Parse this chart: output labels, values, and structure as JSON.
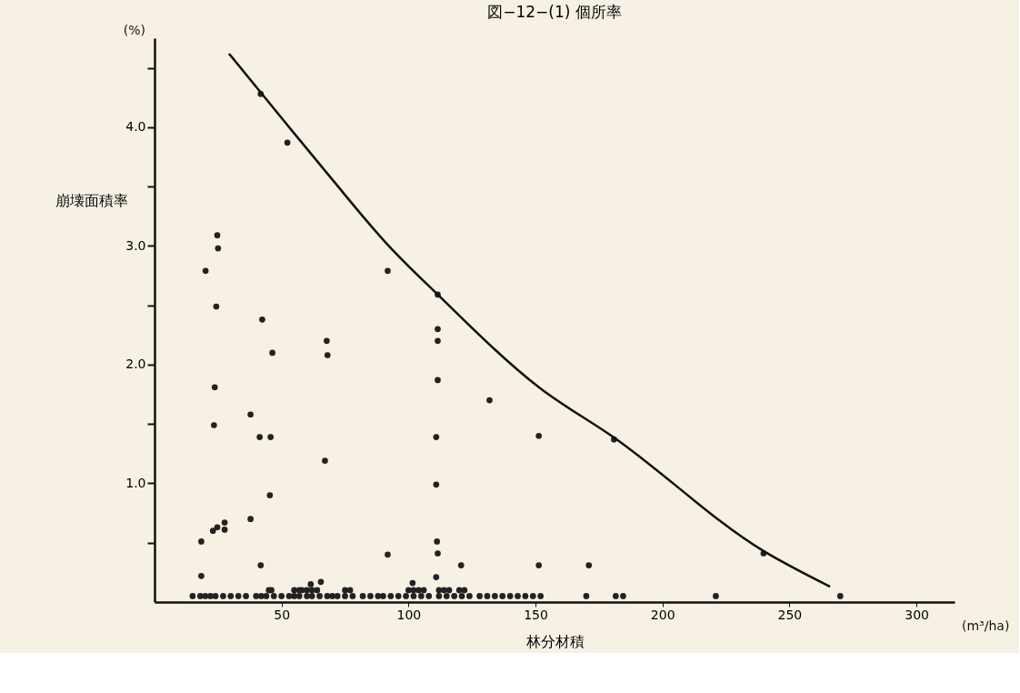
{
  "chart_data": {
    "type": "scatter",
    "title": "図−12−(1) 個所率",
    "xlabel": "林分材積",
    "ylabel": "崩壊面積率",
    "annotations": [
      "(%)",
      "(m³/ha)"
    ],
    "xlim": [
      0,
      315
    ],
    "xticks": [
      50,
      100,
      150,
      200,
      250,
      300
    ],
    "ylim": [
      0,
      4.75
    ],
    "yticks": [
      {
        "value": 0.5,
        "label": null
      },
      {
        "value": 1.0,
        "label": "1.0"
      },
      {
        "value": 1.5,
        "label": null
      },
      {
        "value": 2.0,
        "label": "2.0"
      },
      {
        "value": 2.5,
        "label": null
      },
      {
        "value": 3.0,
        "label": "3.0"
      },
      {
        "value": 3.5,
        "label": null
      },
      {
        "value": 4.0,
        "label": "4.0"
      },
      {
        "value": 4.5,
        "label": null
      }
    ],
    "grid": false,
    "legend": false,
    "marker": "circle",
    "series": [
      {
        "color": "#222222",
        "x": [
          18.4,
          18.4,
          20.1,
          24.7,
          25,
          24.3,
          23.7,
          23.4,
          23,
          24.7,
          27.6,
          27.6,
          37.8,
          37.8,
          41.8,
          42.4,
          41.4,
          45.7,
          46.4,
          45.4,
          41.8,
          52.3,
          67.1,
          67.8,
          68.1,
          91.8,
          91.8,
          111.5,
          111.5,
          111.5,
          111.5,
          110.9,
          110.9,
          111.2,
          111.5,
          120.7,
          131.9,
          151.3,
          151.3,
          171,
          180.9,
          239.8,
          61.5,
          65.5,
          101.6,
          110.9,
          15,
          18,
          20,
          22,
          24,
          27,
          30,
          33,
          36,
          40,
          42,
          44,
          47,
          50,
          53,
          55,
          57,
          60,
          62,
          65,
          68,
          70,
          72,
          75,
          78,
          82,
          85,
          88,
          90,
          93,
          96,
          99,
          102,
          105,
          108,
          112,
          115,
          118,
          121,
          124,
          128,
          131,
          134,
          137,
          140,
          143,
          146,
          149,
          152,
          170,
          181.6,
          184.5,
          221,
          270,
          45,
          46,
          55,
          57,
          58,
          60,
          62,
          64,
          75,
          77,
          100,
          102,
          104,
          106,
          112,
          114,
          116,
          120,
          122
        ],
        "values": [
          0.51,
          0.22,
          2.79,
          3.09,
          2.98,
          2.49,
          1.81,
          1.49,
          0.6,
          0.63,
          0.67,
          0.61,
          1.58,
          0.7,
          4.28,
          2.38,
          1.39,
          1.39,
          2.1,
          0.9,
          0.31,
          3.87,
          1.19,
          2.2,
          2.08,
          2.79,
          0.4,
          2.59,
          2.3,
          2.2,
          1.87,
          1.39,
          0.99,
          0.51,
          0.41,
          0.31,
          1.7,
          1.4,
          0.31,
          0.31,
          1.37,
          0.41,
          0.15,
          0.17,
          0.16,
          0.21,
          0.05,
          0.05,
          0.05,
          0.05,
          0.05,
          0.05,
          0.05,
          0.05,
          0.05,
          0.05,
          0.05,
          0.05,
          0.05,
          0.05,
          0.05,
          0.05,
          0.05,
          0.05,
          0.05,
          0.05,
          0.05,
          0.05,
          0.05,
          0.05,
          0.05,
          0.05,
          0.05,
          0.05,
          0.05,
          0.05,
          0.05,
          0.05,
          0.05,
          0.05,
          0.05,
          0.05,
          0.05,
          0.05,
          0.05,
          0.05,
          0.05,
          0.05,
          0.05,
          0.05,
          0.05,
          0.05,
          0.05,
          0.05,
          0.05,
          0.05,
          0.05,
          0.05,
          0.05,
          0.05,
          0.1,
          0.1,
          0.1,
          0.1,
          0.1,
          0.1,
          0.1,
          0.1,
          0.1,
          0.1,
          0.1,
          0.1,
          0.1,
          0.1,
          0.1,
          0.1,
          0.1,
          0.1,
          0.1
        ]
      },
      {
        "type": "line",
        "color": "#111111",
        "line_style": "solid",
        "marker": "none",
        "x": [
          29.3,
          50.7,
          68.8,
          91.8,
          111.5,
          151.3,
          180.6,
          239.8,
          266
        ],
        "values": [
          4.62,
          4.06,
          3.59,
          3.01,
          2.59,
          1.81,
          1.39,
          0.43,
          0.13
        ]
      }
    ]
  }
}
